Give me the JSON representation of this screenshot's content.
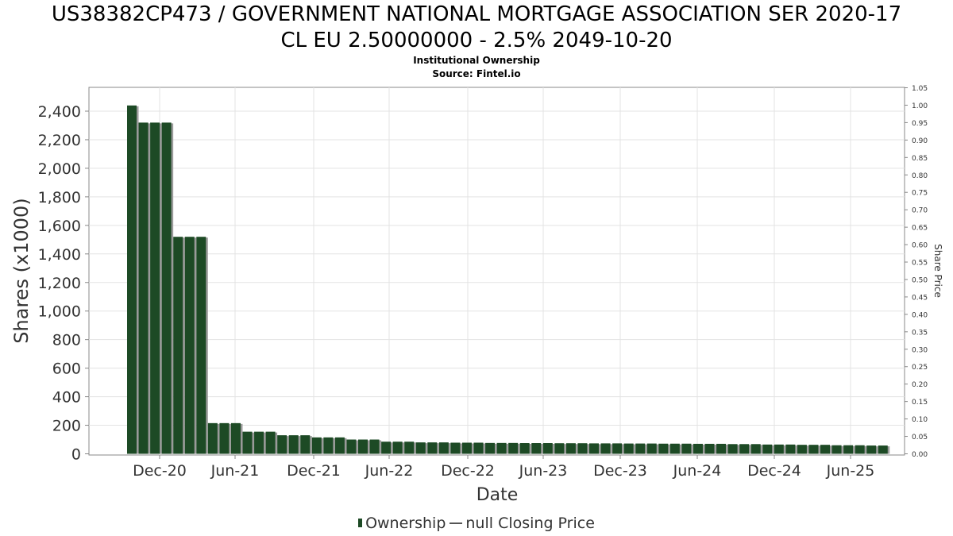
{
  "chart_data": {
    "type": "bar",
    "title_line1": "US38382CP473 / GOVERNMENT NATIONAL MORTGAGE ASSOCIATION SER 2020-17",
    "title_line2": "CL EU 2.50000000 - 2.5% 2049-10-20",
    "subtitle_line1": "Institutional Ownership",
    "subtitle_line2": "Source: Fintel.io",
    "xlabel": "Date",
    "ylabel": "Shares (x1000)",
    "y2label": "Share Price",
    "ylim": [
      0,
      2550
    ],
    "y2lim": [
      0,
      1.05
    ],
    "yticks": [
      0,
      200,
      400,
      600,
      800,
      1000,
      1200,
      1400,
      1600,
      1800,
      2000,
      2200,
      2400
    ],
    "ytick_labels": [
      "0",
      "200",
      "400",
      "600",
      "800",
      "1,000",
      "1,200",
      "1,400",
      "1,600",
      "1,800",
      "2,000",
      "2,200",
      "2,400"
    ],
    "y2ticks": [
      0,
      0.05,
      0.1,
      0.15,
      0.2,
      0.25,
      0.3,
      0.35,
      0.4,
      0.45,
      0.5,
      0.55,
      0.6,
      0.65,
      0.7,
      0.75,
      0.8,
      0.85,
      0.9,
      0.95,
      1.0,
      1.05
    ],
    "y2tick_labels": [
      "0.00",
      "0.05",
      "0.10",
      "0.15",
      "0.20",
      "0.25",
      "0.30",
      "0.35",
      "0.40",
      "0.45",
      "0.50",
      "0.55",
      "0.60",
      "0.65",
      "0.70",
      "0.75",
      "0.80",
      "0.85",
      "0.90",
      "0.95",
      "1.00",
      "1.05"
    ],
    "xticks": [
      "Dec-20",
      "Jun-21",
      "Dec-21",
      "Jun-22",
      "Dec-22",
      "Jun-23",
      "Dec-23",
      "Jun-24",
      "Dec-24",
      "Jun-25"
    ],
    "grid": true,
    "legend_position": "bottom-center",
    "series": [
      {
        "name": "Ownership",
        "color": "#1d4a25",
        "values": [
          2440,
          2320,
          2320,
          2320,
          1520,
          1520,
          1520,
          215,
          215,
          215,
          155,
          155,
          155,
          130,
          130,
          130,
          115,
          115,
          115,
          100,
          100,
          100,
          85,
          85,
          85,
          80,
          80,
          80,
          78,
          78,
          78,
          76,
          76,
          76,
          75,
          75,
          75,
          74,
          74,
          74,
          73,
          73,
          73,
          72,
          72,
          72,
          71,
          71,
          71,
          70,
          70,
          70,
          68,
          68,
          68,
          65,
          65,
          65,
          63,
          63,
          63,
          60,
          60,
          60,
          58,
          58
        ]
      }
    ],
    "legend": {
      "ownership_label": "Ownership",
      "price_label": "null Closing Price"
    }
  }
}
